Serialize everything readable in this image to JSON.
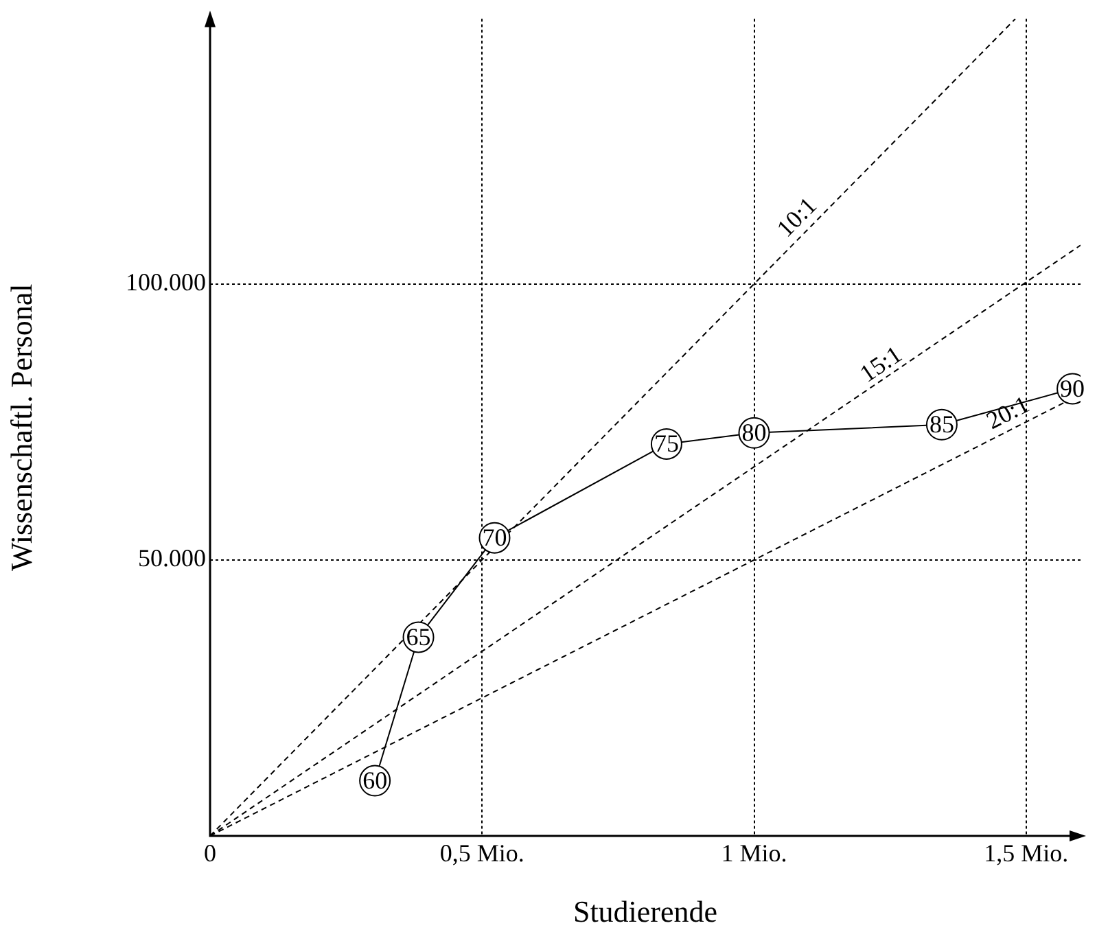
{
  "chart_data": {
    "type": "line",
    "xlabel": "Studierende",
    "ylabel": "Wissenschaftl. Personal",
    "xlim": [
      0,
      1.6
    ],
    "ylim": [
      0,
      148000
    ],
    "xticks": [
      {
        "value": 0,
        "label": "0"
      },
      {
        "value": 0.5,
        "label": "0,5 Mio."
      },
      {
        "value": 1,
        "label": "1 Mio."
      },
      {
        "value": 1.5,
        "label": "1,5 Mio."
      }
    ],
    "yticks": [
      {
        "value": 0,
        "label": null
      },
      {
        "value": 50000,
        "label": "50.000"
      },
      {
        "value": 100000,
        "label": "100.000"
      }
    ],
    "grid": true,
    "legend": false,
    "series": [
      {
        "color": "#000000",
        "marker": "circle",
        "line_style": "solid",
        "x": [
          0.303,
          0.383,
          0.523,
          0.839,
          1.0,
          1.345,
          1.585
        ],
        "values": [
          10000,
          36000,
          54000,
          71000,
          73000,
          74500,
          81000
        ]
      },
      {
        "color": "#000000",
        "marker": "none",
        "line_style": "dashed",
        "x": [
          0,
          1.48
        ],
        "values": [
          0,
          148000
        ]
      },
      {
        "color": "#000000",
        "marker": "none",
        "line_style": "dashed",
        "x": [
          0,
          1.6
        ],
        "values": [
          0,
          107000
        ]
      },
      {
        "color": "#000000",
        "marker": "none",
        "line_style": "dashed",
        "x": [
          0,
          1.6
        ],
        "values": [
          0,
          80000
        ]
      }
    ],
    "annotations": [
      {
        "text": "60",
        "x": 0.303,
        "y": 10000
      },
      {
        "text": "65",
        "x": 0.383,
        "y": 36000
      },
      {
        "text": "70",
        "x": 0.523,
        "y": 54000
      },
      {
        "text": "75",
        "x": 0.839,
        "y": 71000
      },
      {
        "text": "80",
        "x": 1.0,
        "y": 73000
      },
      {
        "text": "85",
        "x": 1.345,
        "y": 74500
      },
      {
        "text": "90",
        "x": 1.585,
        "y": 81000
      },
      {
        "text": "10:1",
        "x": 1.1,
        "y": 110000
      },
      {
        "text": "15:1",
        "x": 1.25,
        "y": 83000
      },
      {
        "text": "20:1",
        "x": 1.48,
        "y": 74000
      }
    ]
  }
}
